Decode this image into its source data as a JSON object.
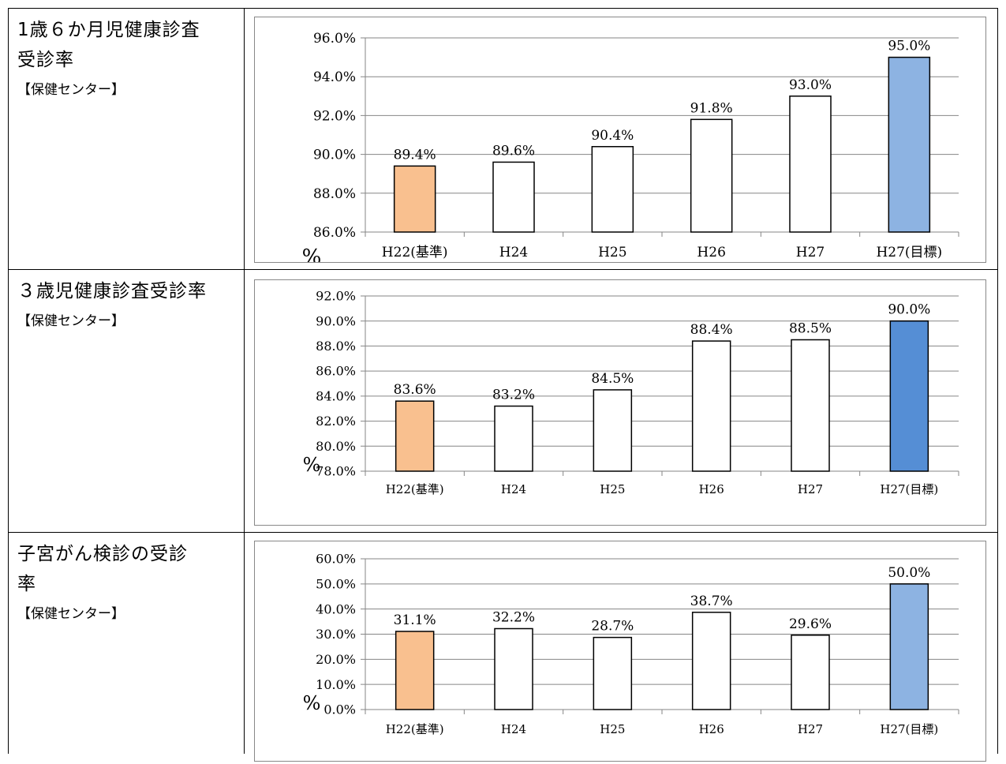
{
  "rows": [
    {
      "title_lines": [
        "1歳６か月児健康診査",
        "受診率"
      ],
      "subtitle": "【保健センター】"
    },
    {
      "title_lines": [
        "３歳児健康診査受診率"
      ],
      "subtitle": "【保健センター】"
    },
    {
      "title_lines": [
        "子宮がん検診の受診",
        "率"
      ],
      "subtitle": "【保健センター】"
    }
  ],
  "chart_data": [
    {
      "type": "bar",
      "categories": [
        "H22(基準)",
        "H24",
        "H25",
        "H26",
        "H27",
        "H27(目標)"
      ],
      "values": [
        89.4,
        89.6,
        90.4,
        91.8,
        93.0,
        95.0
      ],
      "data_labels": [
        "89.4%",
        "89.6%",
        "90.4%",
        "91.8%",
        "93.0%",
        "95.0%"
      ],
      "ylim": [
        86,
        96
      ],
      "yticks": [
        86,
        88,
        90,
        92,
        94,
        96
      ],
      "ytick_labels": [
        "86.0%",
        "88.0%",
        "90.0%",
        "92.0%",
        "94.0%",
        "96.0%"
      ],
      "ylabel": "%",
      "grid": true,
      "colors": [
        "#F9C08F",
        "#FFFFFF",
        "#FFFFFF",
        "#FFFFFF",
        "#FFFFFF",
        "#8DB3E2"
      ]
    },
    {
      "type": "bar",
      "categories": [
        "H22(基準)",
        "H24",
        "H25",
        "H26",
        "H27",
        "H27(目標)"
      ],
      "values": [
        83.6,
        83.2,
        84.5,
        88.4,
        88.5,
        90.0
      ],
      "data_labels": [
        "83.6%",
        "83.2%",
        "84.5%",
        "88.4%",
        "88.5%",
        "90.0%"
      ],
      "ylim": [
        78,
        92
      ],
      "yticks": [
        78,
        80,
        82,
        84,
        86,
        88,
        90,
        92
      ],
      "ytick_labels": [
        "78.0%",
        "80.0%",
        "82.0%",
        "84.0%",
        "86.0%",
        "88.0%",
        "90.0%",
        "92.0%"
      ],
      "ylabel": "%",
      "grid": true,
      "colors": [
        "#F9C08F",
        "#FFFFFF",
        "#FFFFFF",
        "#FFFFFF",
        "#FFFFFF",
        "#558ED5"
      ]
    },
    {
      "type": "bar",
      "categories": [
        "H22(基準)",
        "H24",
        "H25",
        "H26",
        "H27",
        "H27(目標)"
      ],
      "values": [
        31.1,
        32.2,
        28.7,
        38.7,
        29.6,
        50.0
      ],
      "data_labels": [
        "31.1%",
        "32.2%",
        "28.7%",
        "38.7%",
        "29.6%",
        "50.0%"
      ],
      "ylim": [
        0,
        60
      ],
      "yticks": [
        0,
        10,
        20,
        30,
        40,
        50,
        60
      ],
      "ytick_labels": [
        "0.0%",
        "10.0%",
        "20.0%",
        "30.0%",
        "40.0%",
        "50.0%",
        "60.0%"
      ],
      "ylabel": "%",
      "grid": true,
      "colors": [
        "#F9C08F",
        "#FFFFFF",
        "#FFFFFF",
        "#FFFFFF",
        "#FFFFFF",
        "#8DB3E2"
      ]
    }
  ]
}
